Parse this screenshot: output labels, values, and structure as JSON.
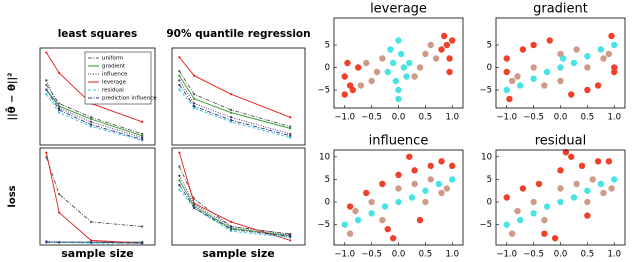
{
  "chart_data": [
    {
      "type": "line",
      "title": "least squares",
      "ylabel": "||θ̂ − θ||²",
      "legend": "upper right",
      "x": [
        500,
        1500,
        4000,
        8000
      ],
      "xlim": [
        0,
        9000
      ],
      "ylim": [
        0,
        1.05
      ],
      "series": [
        {
          "name": "uniform",
          "color": "#555555",
          "dash": "dashdot",
          "values": [
            0.65,
            0.45,
            0.3,
            0.12
          ]
        },
        {
          "name": "gradient",
          "color": "#2a9a2a",
          "dash": "solid",
          "values": [
            0.6,
            0.42,
            0.28,
            0.1
          ]
        },
        {
          "name": "influence",
          "color": "#442266",
          "dash": "dotted",
          "values": [
            0.7,
            0.4,
            0.25,
            0.08
          ]
        },
        {
          "name": "leverage",
          "color": "#e02020",
          "dash": "solid",
          "values": [
            1.0,
            0.78,
            0.45,
            0.25
          ]
        },
        {
          "name": "residual",
          "color": "#30c8d8",
          "dash": "dashed",
          "values": [
            0.55,
            0.35,
            0.2,
            0.05
          ]
        },
        {
          "name": "prediction influence",
          "color": "#303080",
          "dash": "dashdot",
          "values": [
            0.6,
            0.38,
            0.22,
            0.06
          ]
        }
      ]
    },
    {
      "type": "line",
      "title": "90% quantile regression",
      "x": [
        500,
        1500,
        4000,
        8000
      ],
      "xlim": [
        0,
        9000
      ],
      "ylim": [
        0,
        1.05
      ],
      "series": [
        {
          "color": "#555555",
          "dash": "dashdot",
          "values": [
            0.8,
            0.55,
            0.38,
            0.2
          ]
        },
        {
          "color": "#2a9a2a",
          "dash": "solid",
          "values": [
            0.75,
            0.5,
            0.35,
            0.18
          ]
        },
        {
          "color": "#442266",
          "dash": "dotted",
          "values": [
            0.7,
            0.45,
            0.3,
            0.12
          ]
        },
        {
          "color": "#e02020",
          "dash": "solid",
          "values": [
            0.95,
            0.75,
            0.55,
            0.3
          ]
        },
        {
          "color": "#30c8d8",
          "dash": "dashed",
          "values": [
            0.6,
            0.4,
            0.25,
            0.08
          ]
        },
        {
          "color": "#303080",
          "dash": "dashdot",
          "values": [
            0.65,
            0.42,
            0.27,
            0.1
          ]
        }
      ]
    },
    {
      "type": "line",
      "ylabel": "loss",
      "xlabel": "sample size",
      "x": [
        500,
        1500,
        4000,
        8000
      ],
      "xlim": [
        0,
        9000
      ],
      "ylim": [
        0,
        1.05
      ],
      "series": [
        {
          "color": "#555555",
          "dash": "dashdot",
          "values": [
            0.95,
            0.55,
            0.25,
            0.2
          ]
        },
        {
          "color": "#2a9a2a",
          "dash": "solid",
          "values": [
            0.03,
            0.03,
            0.03,
            0.03
          ]
        },
        {
          "color": "#442266",
          "dash": "dotted",
          "values": [
            0.04,
            0.03,
            0.03,
            0.03
          ]
        },
        {
          "color": "#e02020",
          "dash": "solid",
          "values": [
            1.0,
            0.35,
            0.05,
            0.02
          ]
        },
        {
          "color": "#30c8d8",
          "dash": "dashed",
          "values": [
            0.03,
            0.03,
            0.02,
            0.02
          ]
        },
        {
          "color": "#303080",
          "dash": "dashdot",
          "values": [
            0.03,
            0.03,
            0.03,
            0.02
          ]
        }
      ]
    },
    {
      "type": "line",
      "xlabel": "sample size",
      "x": [
        500,
        1500,
        4000,
        8000
      ],
      "xlim": [
        0,
        9000
      ],
      "ylim": [
        0,
        1.05
      ],
      "series": [
        {
          "color": "#555555",
          "dash": "dashdot",
          "values": [
            0.85,
            0.5,
            0.2,
            0.12
          ]
        },
        {
          "color": "#2a9a2a",
          "dash": "solid",
          "values": [
            0.7,
            0.42,
            0.18,
            0.1
          ]
        },
        {
          "color": "#442266",
          "dash": "dotted",
          "values": [
            0.75,
            0.44,
            0.2,
            0.11
          ]
        },
        {
          "color": "#e02020",
          "dash": "solid",
          "values": [
            1.0,
            0.45,
            0.25,
            0.05
          ]
        },
        {
          "color": "#30c8d8",
          "dash": "dashed",
          "values": [
            0.6,
            0.4,
            0.15,
            0.08
          ]
        },
        {
          "color": "#303080",
          "dash": "dashdot",
          "values": [
            0.65,
            0.4,
            0.17,
            0.09
          ]
        }
      ]
    },
    {
      "type": "scatter",
      "title": "leverage",
      "xlim": [
        -1.2,
        1.2
      ],
      "ylim": [
        -9,
        11
      ],
      "xticks": [
        {
          "value": -1,
          "label": "−1.0"
        },
        {
          "value": -0.5,
          "label": "−0.5"
        },
        {
          "value": 0,
          "label": "0.0"
        },
        {
          "value": 0.5,
          "label": "0.5"
        },
        {
          "value": 1,
          "label": "1.0"
        }
      ],
      "yticks": [
        {
          "value": -5,
          "label": "−5"
        },
        0,
        5
      ],
      "series": [
        {
          "color": "#f0402a",
          "x": [
            -1.0,
            -0.95,
            -0.9,
            0.9,
            0.95,
            1.0,
            0.85,
            -0.85,
            -1.0,
            0.95,
            -0.75,
            0.8
          ],
          "y": [
            -2,
            1,
            -4,
            5,
            2,
            6,
            7,
            -5,
            -6,
            -1,
            0,
            4
          ]
        },
        {
          "color": "#d09a88",
          "x": [
            -0.5,
            -0.6,
            -0.4,
            0.5,
            0.6,
            0.4,
            -0.7,
            0.7,
            -0.3,
            0.3
          ],
          "y": [
            -3,
            1,
            -1,
            3,
            5,
            0,
            -4,
            2,
            2,
            -2
          ]
        },
        {
          "color": "#48e4e4",
          "x": [
            0,
            0,
            0.05,
            -0.05,
            0.1,
            -0.1,
            0,
            0.15,
            -0.15,
            0.2,
            -0.2
          ],
          "y": [
            -7,
            6,
            3,
            -3,
            0,
            1,
            -5,
            -2,
            4,
            1,
            -1
          ]
        }
      ]
    },
    {
      "type": "scatter",
      "title": "gradient",
      "xlim": [
        -1.2,
        1.2
      ],
      "ylim": [
        -9,
        11
      ],
      "xticks": [
        {
          "value": -1,
          "label": "−1.0"
        },
        {
          "value": -0.5,
          "label": "−0.5"
        },
        {
          "value": 0,
          "label": "0.0"
        },
        {
          "value": 0.5,
          "label": "0.5"
        },
        {
          "value": 1,
          "label": "1.0"
        }
      ],
      "yticks": [
        {
          "value": -5,
          "label": "−5"
        },
        0,
        5
      ],
      "series": [
        {
          "color": "#f0402a",
          "x": [
            -1,
            -0.7,
            -0.5,
            1,
            0.7,
            0.5,
            -0.2,
            0.2,
            0.95,
            -0.95,
            1,
            -1
          ],
          "y": [
            2,
            4,
            5,
            -1,
            -4,
            -5,
            6,
            -6,
            7,
            -7,
            0,
            -1
          ]
        },
        {
          "color": "#d09a88",
          "x": [
            -0.5,
            0.5,
            -0.8,
            0.8,
            0,
            0,
            0.3,
            -0.3,
            0.9,
            -0.9
          ],
          "y": [
            0,
            0,
            -2,
            2,
            3,
            -3,
            4,
            -4,
            3,
            -3
          ]
        },
        {
          "color": "#48e4e4",
          "x": [
            -1,
            -0.5,
            0,
            0.5,
            1,
            -0.25,
            0.25,
            0.75,
            -0.75,
            0.05
          ],
          "y": [
            -5,
            -2.5,
            0,
            2.5,
            5,
            -1,
            1,
            4,
            -4,
            2
          ]
        }
      ]
    },
    {
      "type": "scatter",
      "title": "influence",
      "xlim": [
        -1.2,
        1.2
      ],
      "ylim": [
        -9.5,
        11.5
      ],
      "xticks": [
        {
          "value": -1,
          "label": "−1.0"
        },
        {
          "value": -0.5,
          "label": "−0.5"
        },
        {
          "value": 0,
          "label": "0.0"
        },
        {
          "value": 0.5,
          "label": "0.5"
        },
        {
          "value": 1,
          "label": "1.0"
        }
      ],
      "yticks": [
        {
          "value": -5,
          "label": "−5"
        },
        0,
        5,
        10
      ],
      "series": [
        {
          "color": "#f0402a",
          "x": [
            -0.6,
            -0.3,
            0,
            0.2,
            0.3,
            0.6,
            -0.2,
            0.4,
            -0.1,
            0.8,
            1.0,
            -0.9
          ],
          "y": [
            2,
            4,
            6,
            10,
            7,
            8,
            -6,
            -4,
            -8,
            9,
            8,
            -1
          ]
        },
        {
          "color": "#d09a88",
          "x": [
            -0.8,
            -0.5,
            0.5,
            0.8,
            0,
            0.3,
            -0.3,
            0.9,
            -0.9,
            0.6
          ],
          "y": [
            -2,
            0,
            0,
            2,
            3,
            4,
            -4,
            3,
            -7,
            5
          ]
        },
        {
          "color": "#48e4e4",
          "x": [
            -1,
            -0.5,
            0,
            0.5,
            1,
            -0.25,
            0.25,
            0.75,
            -0.75
          ],
          "y": [
            -5,
            -2.5,
            0,
            2.5,
            5,
            -1,
            1,
            4,
            -4
          ]
        }
      ]
    },
    {
      "type": "scatter",
      "title": "residual",
      "xlim": [
        -1.2,
        1.2
      ],
      "ylim": [
        -9.5,
        11.5
      ],
      "xticks": [
        {
          "value": -1,
          "label": "−1.0"
        },
        {
          "value": -0.5,
          "label": "−0.5"
        },
        {
          "value": 0,
          "label": "0.0"
        },
        {
          "value": 0.5,
          "label": "0.5"
        },
        {
          "value": 1,
          "label": "1.0"
        }
      ],
      "yticks": [
        {
          "value": -5,
          "label": "−5"
        },
        0,
        5,
        10
      ],
      "series": [
        {
          "color": "#f0402a",
          "x": [
            -0.7,
            -0.4,
            0.1,
            0.2,
            0.4,
            0.7,
            -0.3,
            0.5,
            -0.1,
            0.9,
            -1.0,
            0.0
          ],
          "y": [
            3,
            4,
            11,
            10,
            8,
            9,
            -7,
            -3,
            -8,
            9,
            1,
            7
          ]
        },
        {
          "color": "#d09a88",
          "x": [
            -0.8,
            -0.5,
            0.5,
            0.8,
            0,
            0.3,
            -0.3,
            0.95,
            -0.9,
            0.6
          ],
          "y": [
            -2,
            0,
            0,
            2,
            3,
            4,
            -4,
            3,
            -7,
            5
          ]
        },
        {
          "color": "#48e4e4",
          "x": [
            -1,
            -0.5,
            0,
            0.5,
            1,
            -0.25,
            0.25,
            0.75,
            -0.75
          ],
          "y": [
            -5,
            -2.5,
            0,
            2.5,
            5,
            -1,
            1,
            4,
            -4
          ]
        }
      ]
    }
  ]
}
